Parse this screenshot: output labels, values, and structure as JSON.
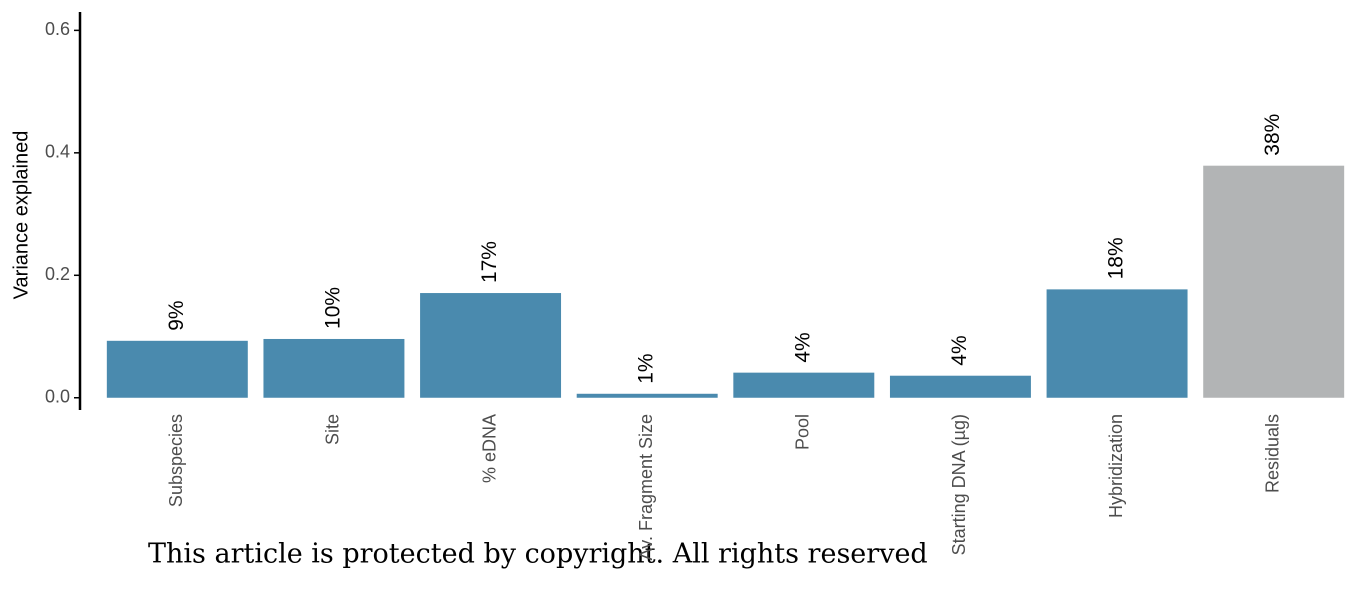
{
  "chart_data": {
    "type": "bar",
    "y_label": "Variance explained",
    "categories": [
      "Subspecies",
      "Site",
      "% eDNA",
      "Av. Fragment Size",
      "Pool",
      "Starting DNA (µg)",
      "Hybridization",
      "Residuals"
    ],
    "values": [
      0.093,
      0.096,
      0.171,
      0.0065,
      0.041,
      0.036,
      0.177,
      0.379
    ],
    "value_labels": [
      "9%",
      "10%",
      "17%",
      "1%",
      "4%",
      "4%",
      "18%",
      "38%"
    ],
    "colors": [
      "#4a8aae",
      "#4a8aae",
      "#4a8aae",
      "#4a8aae",
      "#4a8aae",
      "#4a8aae",
      "#4a8aae",
      "#b2b4b5"
    ],
    "ylim": [
      -0.02,
      0.63
    ],
    "yticks": [
      {
        "value": 0,
        "label": "0.0"
      },
      0.2,
      0.4,
      0.6
    ],
    "grid": false
  },
  "footer": "This article is protected by copyright. All rights reserved"
}
